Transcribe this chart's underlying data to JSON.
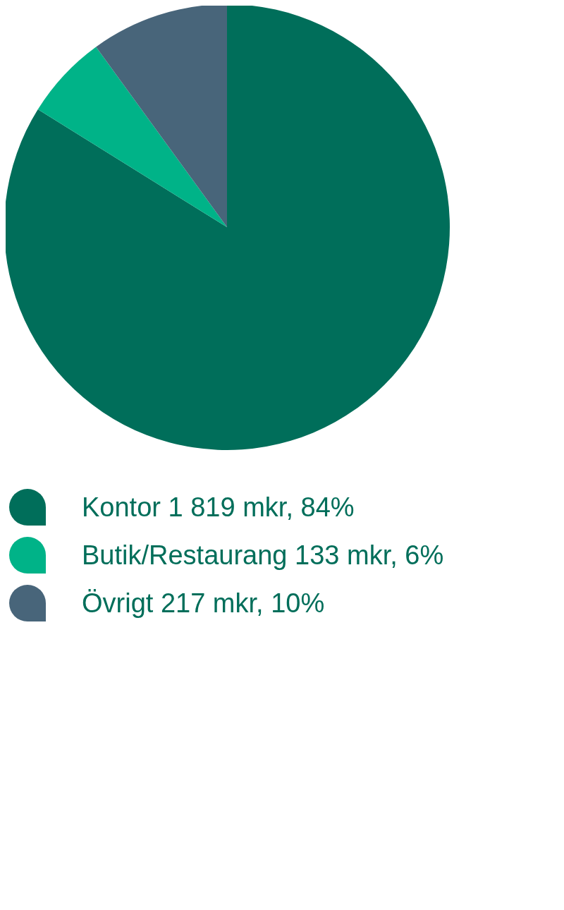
{
  "chart_data": {
    "type": "pie",
    "categories": [
      "Kontor",
      "Butik/Restaurang",
      "Övrigt"
    ],
    "values": [
      1819,
      133,
      217
    ],
    "value_labels": [
      "1 819 mkr, 84%",
      "133 mkr, 6%",
      "217 mkr, 10%"
    ],
    "colors": [
      "#006e5a",
      "#00b388",
      "#48657a"
    ],
    "legend": "bottom left"
  }
}
